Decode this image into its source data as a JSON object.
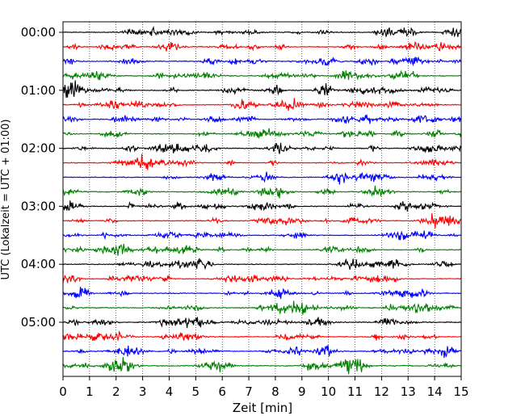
{
  "chart_data": {
    "type": "line",
    "xlabel": "Zeit  [min]",
    "ylabel": "UTC (Lokalzeit = UTC + 01:00)",
    "xlim": [
      0,
      15
    ],
    "x_ticks": [
      "0",
      "1",
      "2",
      "3",
      "4",
      "5",
      "6",
      "7",
      "8",
      "9",
      "10",
      "11",
      "12",
      "13",
      "14",
      "15"
    ],
    "y_tick_labels": [
      "00:00",
      "01:00",
      "02:00",
      "03:00",
      "04:00",
      "05:00"
    ],
    "y_tick_rows": [
      0,
      4,
      8,
      12,
      16,
      20
    ],
    "grid": "vertical-dotted",
    "trace_count": 24,
    "trace_interval_min": 15,
    "trace_colors": [
      "#000000",
      "#ff0000",
      "#0000ff",
      "#008000"
    ]
  }
}
